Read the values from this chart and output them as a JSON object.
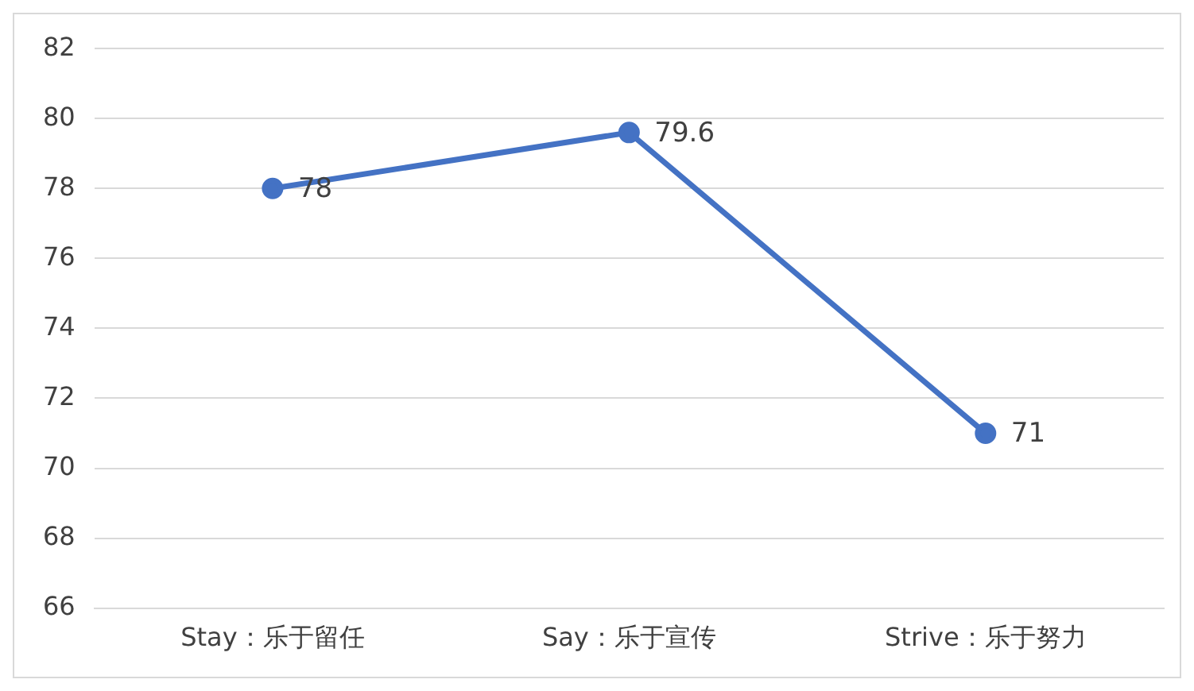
{
  "chart_data": {
    "type": "line",
    "categories": [
      "Stay：乐于留任",
      "Say：乐于宣传",
      "Strive：乐于努力"
    ],
    "series": [
      {
        "color": "#4472c4",
        "values": [
          78,
          79.6,
          71
        ]
      }
    ],
    "ylim": [
      66,
      82
    ],
    "yticks": [
      66,
      68,
      70,
      72,
      74,
      76,
      78,
      80,
      82
    ],
    "grid": "y",
    "legend": false,
    "marker": "circle",
    "line_style": "solid",
    "data_labels": true
  }
}
